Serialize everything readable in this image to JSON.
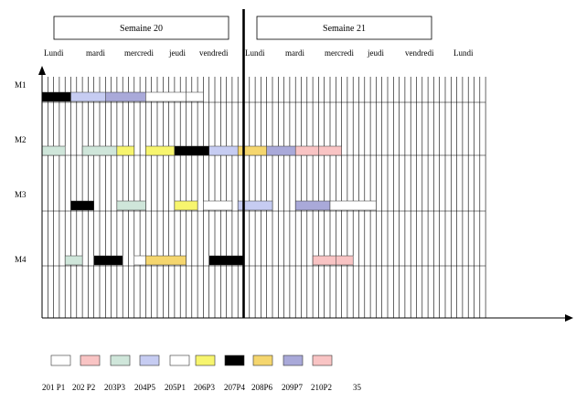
{
  "weeks": [
    {
      "label": "Semaine 20",
      "start_slot": 0
    },
    {
      "label": "Semaine 21",
      "start_slot": 35
    }
  ],
  "days": [
    "Lundi",
    "mardi",
    "mercredi",
    "jeudi",
    "vendredi",
    "Lundi",
    "mardi",
    "mercredi",
    "jeudi",
    "vendredi",
    "Lundi"
  ],
  "total_slots": 77,
  "machines": [
    "M1",
    "M2",
    "M3",
    "M4"
  ],
  "legend": [
    {
      "label": "201 P1",
      "color": "#ffffff"
    },
    {
      "label": "202 P2",
      "color": "#f9c4c4"
    },
    {
      "label": "203P3",
      "color": "#cfe6da"
    },
    {
      "label": "204P5",
      "color": "#c6ccf2"
    },
    {
      "label": "205P1",
      "color": "#ffffff"
    },
    {
      "label": "206P3",
      "color": "#f7f56e"
    },
    {
      "label": "207P4",
      "color": "#000000"
    },
    {
      "label": "208P6",
      "color": "#f5d66e"
    },
    {
      "label": "209P7",
      "color": "#a9a9d9"
    },
    {
      "label": "210P2",
      "color": "#f9c4c4"
    }
  ],
  "legend_extra": "35",
  "chart_data": {
    "type": "gantt",
    "unit": "slot",
    "rows": [
      "M1",
      "M2",
      "M3",
      "M4"
    ],
    "tasks": [
      {
        "row": "M1",
        "start": 0,
        "end": 5,
        "color": "#000000"
      },
      {
        "row": "M1",
        "start": 5,
        "end": 11,
        "color": "#c6ccf2"
      },
      {
        "row": "M1",
        "start": 11,
        "end": 18,
        "color": "#a9a9d9"
      },
      {
        "row": "M1",
        "start": 18,
        "end": 25,
        "color": "#ffffff"
      },
      {
        "row": "M1",
        "start": 25,
        "end": 28,
        "color": "#ffffff"
      },
      {
        "row": "M2",
        "start": 0,
        "end": 4,
        "color": "#cfe6da"
      },
      {
        "row": "M2",
        "start": 7,
        "end": 13,
        "color": "#cfe6da"
      },
      {
        "row": "M2",
        "start": 13,
        "end": 16,
        "color": "#f7f56e"
      },
      {
        "row": "M2",
        "start": 18,
        "end": 23,
        "color": "#f7f56e"
      },
      {
        "row": "M2",
        "start": 23,
        "end": 29,
        "color": "#000000"
      },
      {
        "row": "M2",
        "start": 29,
        "end": 34,
        "color": "#c6ccf2"
      },
      {
        "row": "M2",
        "start": 34,
        "end": 39,
        "color": "#f5d66e"
      },
      {
        "row": "M2",
        "start": 39,
        "end": 44,
        "color": "#a9a9d9"
      },
      {
        "row": "M2",
        "start": 44,
        "end": 48,
        "color": "#f9c4c4"
      },
      {
        "row": "M2",
        "start": 48,
        "end": 52,
        "color": "#f9c4c4"
      },
      {
        "row": "M3",
        "start": 5,
        "end": 9,
        "color": "#000000"
      },
      {
        "row": "M3",
        "start": 13,
        "end": 18,
        "color": "#cfe6da"
      },
      {
        "row": "M3",
        "start": 23,
        "end": 27,
        "color": "#f7f56e"
      },
      {
        "row": "M3",
        "start": 28,
        "end": 33,
        "color": "#ffffff"
      },
      {
        "row": "M3",
        "start": 34,
        "end": 40,
        "color": "#c6ccf2"
      },
      {
        "row": "M3",
        "start": 44,
        "end": 50,
        "color": "#a9a9d9"
      },
      {
        "row": "M3",
        "start": 50,
        "end": 58,
        "color": "#ffffff"
      },
      {
        "row": "M4",
        "start": 4,
        "end": 7,
        "color": "#cfe6da"
      },
      {
        "row": "M4",
        "start": 9,
        "end": 14,
        "color": "#000000"
      },
      {
        "row": "M4",
        "start": 16,
        "end": 18,
        "color": "#ffffff"
      },
      {
        "row": "M4",
        "start": 18,
        "end": 25,
        "color": "#f5d66e"
      },
      {
        "row": "M4",
        "start": 29,
        "end": 35,
        "color": "#000000"
      },
      {
        "row": "M4",
        "start": 47,
        "end": 51,
        "color": "#f9c4c4"
      },
      {
        "row": "M4",
        "start": 51,
        "end": 54,
        "color": "#f9c4c4"
      }
    ]
  }
}
